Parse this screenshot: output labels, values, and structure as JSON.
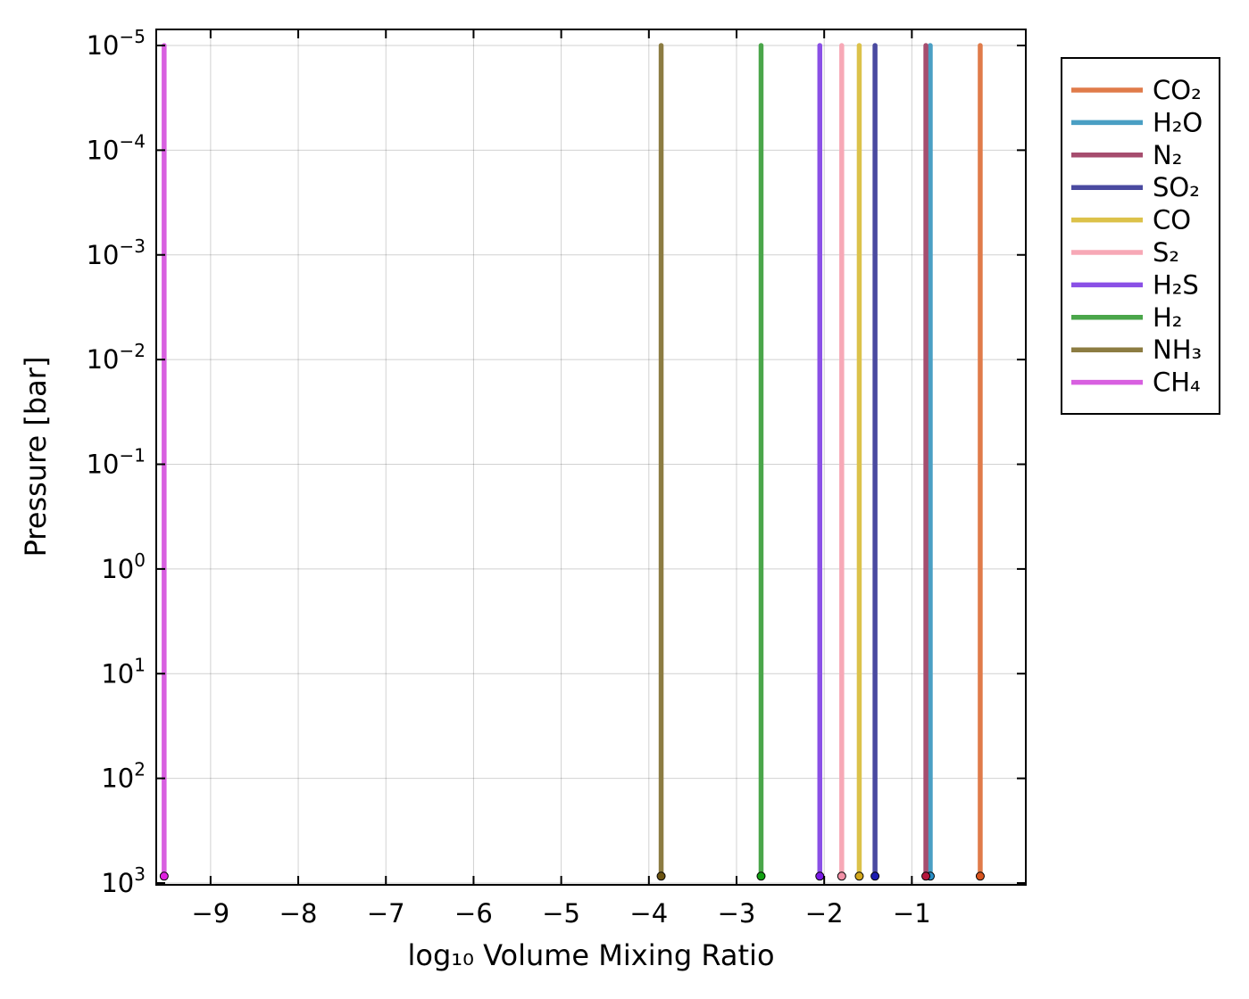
{
  "chart_data": {
    "type": "line",
    "xlabel": "log₁₀ Volume Mixing Ratio",
    "ylabel": "Pressure [bar]",
    "xlim": [
      -9.62,
      0.3
    ],
    "xticks": [
      -9,
      -8,
      -7,
      -6,
      -5,
      -4,
      -3,
      -2,
      -1
    ],
    "xtick_labels": [
      "−9",
      "−8",
      "−7",
      "−6",
      "−5",
      "−4",
      "−3",
      "−2",
      "−1"
    ],
    "y_scale": "log",
    "y_inverted": true,
    "ylim": [
      1e-05,
      1000
    ],
    "yticks": [
      {
        "base": "10",
        "exp": "−5",
        "value": 1e-05
      },
      {
        "base": "10",
        "exp": "−4",
        "value": 0.0001
      },
      {
        "base": "10",
        "exp": "−3",
        "value": 0.001
      },
      {
        "base": "10",
        "exp": "−2",
        "value": 0.01
      },
      {
        "base": "10",
        "exp": "−1",
        "value": 0.1
      },
      {
        "base": "10",
        "exp": "0",
        "value": 1
      },
      {
        "base": "10",
        "exp": "1",
        "value": 10
      },
      {
        "base": "10",
        "exp": "2",
        "value": 100
      },
      {
        "base": "10",
        "exp": "3",
        "value": 1000
      }
    ],
    "grid": true,
    "legend_position": "outside-top-right",
    "surface_pressure": 860,
    "series": [
      {
        "name": "CO₂",
        "x": -0.22,
        "color": "#e07b4a",
        "marker_color": "#d9541e"
      },
      {
        "name": "H₂O",
        "x": -0.79,
        "color": "#4a9fc4",
        "marker_color": "#2a8fc8"
      },
      {
        "name": "N₂",
        "x": -0.84,
        "color": "#a64d6e",
        "marker_color": "#b5173d"
      },
      {
        "name": "SO₂",
        "x": -1.42,
        "color": "#4a4aa0",
        "marker_color": "#1a1ab0"
      },
      {
        "name": "CO",
        "x": -1.6,
        "color": "#dcc24a",
        "marker_color": "#d4a81c"
      },
      {
        "name": "S₂",
        "x": -1.8,
        "color": "#f7a8b6",
        "marker_color": "#f290a6"
      },
      {
        "name": "H₂S",
        "x": -2.05,
        "color": "#8a50e6",
        "marker_color": "#7a1ae6"
      },
      {
        "name": "H₂",
        "x": -2.72,
        "color": "#4aa64a",
        "marker_color": "#12a012"
      },
      {
        "name": "NH₃",
        "x": -3.86,
        "color": "#8c7c42",
        "marker_color": "#6c5412"
      },
      {
        "name": "CH₄",
        "x": -9.53,
        "color": "#d860e0",
        "marker_color": "#e020e0"
      }
    ]
  }
}
